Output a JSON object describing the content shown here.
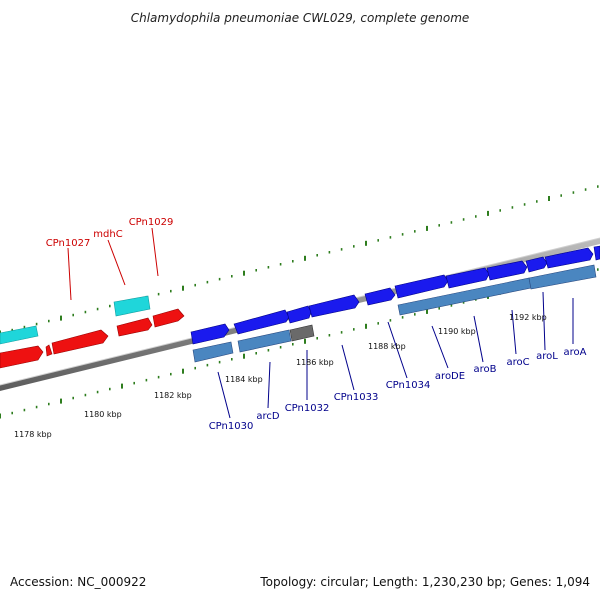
{
  "title": "Chlamydophila pneumoniae CWL029, complete genome",
  "footer": {
    "accession": "Accession: NC_000922",
    "topology": "Topology: circular; Length: 1,230,230 bp; Genes: 1,094"
  },
  "colors": {
    "forward_gene": "#1a1aee",
    "reverse_gene": "#ee1111",
    "cyan_gene": "#1fd6da",
    "steel_gene": "#4a86c0",
    "gray_gene": "#6a6a6a",
    "backbone": "#888888",
    "ticks": "#2e7d1e",
    "label_red": "#cc0000",
    "label_blue": "#00008b"
  },
  "gene_labels_top": [
    "CPn1027",
    "mdhC",
    "CPn1029"
  ],
  "gene_labels_bottom": [
    "CPn1030",
    "arcD",
    "CPn1032",
    "CPn1033",
    "CPn1034",
    "aroDE",
    "aroB",
    "aroC",
    "aroL",
    "aroA"
  ],
  "kbp_ticks": [
    "1178 kbp",
    "1180 kbp",
    "1182 kbp",
    "1184 kbp",
    "1186 kbp",
    "1188 kbp",
    "1190 kbp",
    "1192 kbp"
  ]
}
